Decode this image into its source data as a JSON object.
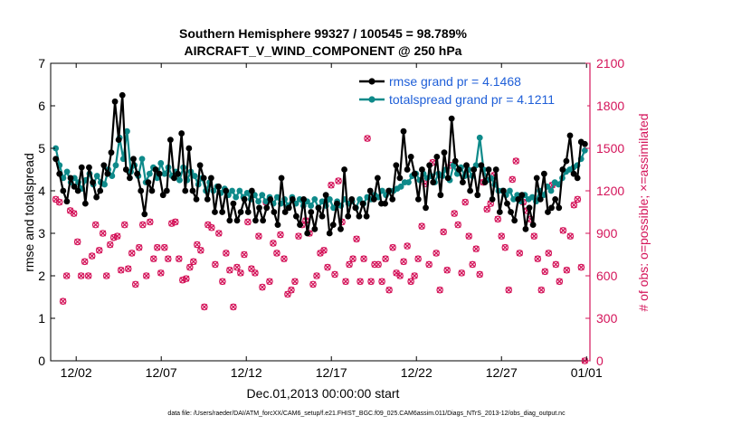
{
  "colors": {
    "rmse": "#000000",
    "spread": "#0e8a8a",
    "obs": "#d4145a",
    "legend_text": "#1f5fd8",
    "axis": "#000000"
  },
  "chart_data": {
    "type": "line",
    "title_line1": "Southern Hemisphere 99327 / 100545 = 98.789%",
    "title_line2": "AIRCRAFT_V_WIND_COMPONENT @ 250 hPa",
    "xlabel": "Dec.01,2013 00:00:00 start",
    "ylabel_left": "rmse and totalspread",
    "ylabel_right": "# of obs: o=possible; ×=assimilated",
    "footnote": "data file: /Users/raeder/DAI/ATM_forcXX/CAM6_setup/f.e21.FHIST_BGC.f09_025.CAM6assim.011/Diags_NTrS_2013-12/obs_diag_output.nc",
    "xlim": [
      0.5,
      32.2
    ],
    "ylim_left": [
      0,
      7
    ],
    "ylim_right": [
      0,
      2100
    ],
    "x_ticks": [
      {
        "v": 2,
        "label": "12/02"
      },
      {
        "v": 7,
        "label": "12/07"
      },
      {
        "v": 12,
        "label": "12/12"
      },
      {
        "v": 17,
        "label": "12/17"
      },
      {
        "v": 22,
        "label": "12/22"
      },
      {
        "v": 27,
        "label": "12/27"
      },
      {
        "v": 32,
        "label": "01/01"
      }
    ],
    "y_ticks_left": [
      "0",
      "1",
      "2",
      "3",
      "4",
      "5",
      "6",
      "7"
    ],
    "y_ticks_right": [
      "0",
      "300",
      "600",
      "900",
      "1200",
      "1500",
      "1800",
      "2100"
    ],
    "series": [
      {
        "name": "rmse grand pr = 4.1468",
        "values": [
          4.75,
          4.4,
          4.0,
          3.75,
          4.3,
          4.1,
          4.0,
          4.55,
          3.7,
          4.55,
          4.2,
          3.85,
          4.0,
          4.6,
          4.4,
          4.9,
          6.1,
          5.2,
          6.25,
          4.5,
          4.3,
          4.75,
          4.4,
          4.0,
          3.45,
          4.2,
          4.0,
          4.5,
          4.4,
          3.9,
          4.0,
          5.2,
          4.3,
          4.4,
          5.35,
          4.0,
          5.0,
          4.0,
          3.8,
          4.6,
          4.3,
          3.8,
          4.3,
          3.5,
          4.1,
          3.5,
          4.0,
          3.3,
          3.7,
          3.3,
          3.5,
          3.8,
          3.5,
          4.0,
          3.3,
          3.6,
          3.3,
          3.6,
          3.8,
          3.5,
          3.2,
          4.3,
          3.5,
          3.6,
          3.8,
          3.4,
          3.2,
          3.8,
          3.0,
          3.5,
          3.1,
          3.6,
          3.4,
          3.9,
          3.0,
          3.2,
          3.7,
          3.1,
          4.5,
          3.4,
          3.8,
          3.6,
          3.4,
          3.7,
          3.4,
          4.0,
          3.8,
          4.3,
          3.7,
          3.7,
          4.0,
          3.8,
          4.6,
          4.3,
          5.4,
          4.5,
          4.8,
          4.4,
          3.8,
          4.5,
          3.6,
          4.6,
          4.2,
          4.8,
          3.9,
          4.9,
          4.3,
          5.7,
          4.7,
          4.5,
          4.2,
          4.6,
          4.0,
          4.5,
          3.9,
          4.6,
          4.2,
          4.5,
          3.8,
          4.5,
          3.5,
          4.0,
          3.7,
          3.5,
          3.3,
          3.8,
          3.9,
          3.1,
          3.6,
          3.2,
          4.3,
          3.8,
          4.4,
          3.5,
          3.6,
          3.8,
          3.6,
          4.5,
          4.7,
          5.3,
          4.4,
          4.3,
          5.15,
          5.1
        ]
      },
      {
        "name": "totalspread grand pr = 4.1211",
        "values": [
          5.0,
          4.6,
          4.3,
          4.45,
          4.2,
          4.3,
          4.2,
          4.05,
          4.25,
          4.4,
          4.15,
          4.35,
          4.2,
          4.15,
          4.5,
          4.35,
          4.6,
          5.25,
          4.75,
          5.4,
          4.45,
          4.6,
          4.35,
          4.75,
          4.2,
          4.4,
          4.55,
          4.3,
          4.65,
          4.4,
          4.55,
          4.35,
          4.45,
          4.25,
          4.55,
          4.25,
          4.45,
          4.35,
          4.15,
          4.3,
          4.0,
          4.2,
          4.0,
          4.1,
          3.95,
          4.05,
          3.9,
          4.0,
          3.85,
          4.0,
          3.85,
          3.95,
          3.8,
          3.9,
          3.75,
          3.9,
          3.75,
          3.85,
          3.7,
          3.85,
          3.7,
          3.8,
          3.65,
          3.85,
          3.7,
          3.8,
          3.65,
          3.75,
          3.65,
          3.8,
          3.6,
          3.75,
          3.65,
          3.8,
          3.6,
          3.75,
          3.65,
          3.8,
          3.7,
          3.75,
          3.6,
          3.8,
          3.7,
          3.85,
          3.8,
          3.9,
          3.85,
          4.0,
          3.9,
          4.0,
          4.0,
          4.05,
          4.1,
          4.2,
          4.2,
          4.35,
          4.4,
          4.25,
          4.4,
          4.3,
          4.35,
          4.2,
          4.4,
          4.35,
          4.5,
          4.25,
          4.6,
          4.4,
          4.55,
          4.35,
          4.5,
          4.35,
          4.6,
          5.25,
          4.5,
          4.25,
          4.3,
          4.15,
          4.0,
          4.0,
          3.9,
          4.0,
          3.8,
          3.9,
          3.75,
          3.9,
          3.8,
          3.85,
          3.75,
          4.0,
          3.9,
          4.1,
          4.0,
          4.2,
          4.15,
          4.3,
          4.45,
          4.5,
          4.55,
          4.6,
          4.75,
          4.95
        ]
      },
      {
        "name": "obs possible/assimilated",
        "axis": "right",
        "values": [
          1140,
          1120,
          420,
          600,
          1060,
          1040,
          840,
          600,
          700,
          600,
          740,
          960,
          780,
          900,
          600,
          820,
          870,
          880,
          640,
          960,
          650,
          760,
          540,
          800,
          960,
          600,
          980,
          720,
          800,
          620,
          800,
          720,
          970,
          980,
          720,
          570,
          580,
          660,
          700,
          820,
          780,
          380,
          960,
          940,
          680,
          900,
          560,
          760,
          640,
          380,
          660,
          620,
          750,
          980,
          650,
          620,
          880,
          520,
          1120,
          560,
          830,
          760,
          890,
          720,
          470,
          500,
          560,
          880,
          960,
          990,
          900,
          540,
          600,
          760,
          780,
          660,
          1240,
          610,
          1270,
          980,
          560,
          680,
          720,
          860,
          560,
          720,
          1570,
          560,
          680,
          680,
          560,
          720,
          500,
          800,
          620,
          600,
          700,
          810,
          560,
          600,
          720,
          950,
          1250,
          680,
          1400,
          760,
          500,
          910,
          640,
          1380,
          1040,
          960,
          620,
          1120,
          880,
          680,
          790,
          610,
          1260,
          1070,
          1110,
          1310,
          1000,
          880,
          800,
          500,
          1280,
          1410,
          760,
          1120,
          1060,
          1000,
          880,
          720,
          500,
          630,
          760,
          1240,
          680,
          560,
          920,
          640,
          880,
          1100,
          1140,
          660,
          0
        ]
      }
    ]
  }
}
